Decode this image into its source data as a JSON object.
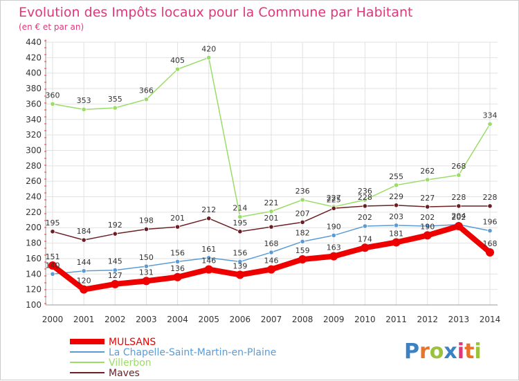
{
  "chart_data": {
    "type": "line",
    "title": "Evolution des Impôts locaux pour la Commune par Habitant",
    "subtitle": "(en € et par an)",
    "x": [
      "2000",
      "2001",
      "2002",
      "2003",
      "2004",
      "2005",
      "2006",
      "2007",
      "2008",
      "2009",
      "2010",
      "2011",
      "2012",
      "2013",
      "2014"
    ],
    "ylim": [
      100,
      440
    ],
    "yticks": [
      100,
      120,
      140,
      160,
      180,
      200,
      220,
      240,
      260,
      280,
      300,
      320,
      340,
      360,
      380,
      400,
      420,
      440
    ],
    "grid": true,
    "legend_position": "bottom-left",
    "series": [
      {
        "name": "MULSANS",
        "color": "#ee0000",
        "emphasis": true,
        "values": [
          151,
          120,
          127,
          131,
          136,
          146,
          139,
          146,
          159,
          163,
          174,
          181,
          190,
          202,
          168
        ]
      },
      {
        "name": "La Chapelle-Saint-Martin-en-Plaine",
        "color": "#5b9bd5",
        "emphasis": false,
        "values": [
          140,
          144,
          145,
          150,
          156,
          161,
          156,
          168,
          182,
          190,
          202,
          203,
          202,
          204,
          196
        ]
      },
      {
        "name": "Villerbon",
        "color": "#99dd66",
        "emphasis": false,
        "values": [
          360,
          353,
          355,
          366,
          405,
          420,
          214,
          221,
          236,
          227,
          236,
          255,
          262,
          268,
          334
        ]
      },
      {
        "name": "Maves",
        "color": "#6b1f24",
        "emphasis": false,
        "values": [
          195,
          184,
          192,
          198,
          201,
          212,
          195,
          201,
          207,
          225,
          228,
          229,
          227,
          228,
          228
        ]
      }
    ]
  },
  "logo": {
    "text": "Proxiti",
    "colors": [
      "#3b82c4",
      "#e8742c",
      "#9bc23c",
      "#3b82c4",
      "#e0367a",
      "#e8742c",
      "#9bc23c"
    ]
  }
}
